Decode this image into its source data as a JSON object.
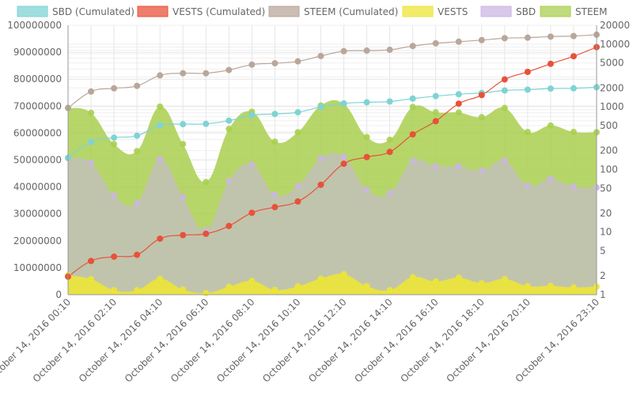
{
  "chart_data": {
    "type": "line",
    "x": [
      "October 14, 2016 00:10",
      "October 14, 2016 01:10",
      "October 14, 2016 02:10",
      "October 14, 2016 03:10",
      "October 14, 2016 04:10",
      "October 14, 2016 05:10",
      "October 14, 2016 06:10",
      "October 14, 2016 07:10",
      "October 14, 2016 08:10",
      "October 14, 2016 09:10",
      "October 14, 2016 10:10",
      "October 14, 2016 11:10",
      "October 14, 2016 12:10",
      "October 14, 2016 13:10",
      "October 14, 2016 14:10",
      "October 14, 2016 15:10",
      "October 14, 2016 16:10",
      "October 14, 2016 17:10",
      "October 14, 2016 18:10",
      "October 14, 2016 19:10",
      "October 14, 2016 20:10",
      "October 14, 2016 21:10",
      "October 14, 2016 22:10",
      "October 14, 2016 23:10"
    ],
    "x_tick_labels": [
      "October 14, 2016 00:10",
      "October 14, 2016 02:10",
      "October 14, 2016 04:10",
      "October 14, 2016 06:10",
      "October 14, 2016 08:10",
      "October 14, 2016 10:10",
      "October 14, 2016 12:10",
      "October 14, 2016 14:10",
      "October 14, 2016 16:10",
      "October 14, 2016 18:10",
      "October 14, 2016 20:10",
      "October 14, 2016 23:10"
    ],
    "y_left": {
      "min": 0,
      "max": 100000000,
      "scale": "linear",
      "ticks": [
        "0",
        "10000000",
        "20000000",
        "30000000",
        "40000000",
        "50000000",
        "60000000",
        "70000000",
        "80000000",
        "90000000",
        "100000000"
      ]
    },
    "y_right": {
      "min": 1,
      "max": 20000,
      "scale": "log",
      "ticks": [
        "1",
        "2",
        "5",
        "10",
        "20",
        "50",
        "100",
        "200",
        "500",
        "1000",
        "2000",
        "5000",
        "10000",
        "20000"
      ]
    },
    "grid": true,
    "legend_position": "top",
    "series": [
      {
        "name": "SBD (Cumulated)",
        "kind": "line",
        "axis": "left",
        "color": "#7fd3d4",
        "values": [
          50800000,
          56700000,
          58300000,
          59000000,
          62900000,
          63300000,
          63400000,
          64600000,
          66600000,
          67100000,
          67700000,
          69700000,
          71000000,
          71400000,
          71700000,
          72800000,
          73700000,
          74400000,
          74900000,
          75800000,
          76100000,
          76500000,
          76600000,
          77000000
        ]
      },
      {
        "name": "VESTS (Cumulated)",
        "kind": "line",
        "axis": "left",
        "color": "#e8513a",
        "values": [
          6700000,
          12500000,
          14100000,
          14800000,
          20800000,
          22100000,
          22600000,
          25500000,
          30400000,
          32500000,
          34600000,
          40800000,
          48600000,
          51100000,
          53000000,
          59500000,
          64400000,
          70900000,
          74100000,
          79900000,
          82700000,
          85700000,
          88500000,
          91900000
        ]
      },
      {
        "name": "STEEM (Cumulated)",
        "kind": "line",
        "axis": "left",
        "color": "#b9a79b",
        "values": [
          69300000,
          75400000,
          76600000,
          77500000,
          81400000,
          82200000,
          82200000,
          83400000,
          85400000,
          85900000,
          86600000,
          88600000,
          90400000,
          90600000,
          90900000,
          92300000,
          93300000,
          93900000,
          94500000,
          95200000,
          95400000,
          95800000,
          96000000,
          96500000
        ]
      },
      {
        "name": "VESTS",
        "kind": "area",
        "axis": "left",
        "color": "#ece637",
        "values": [
          7200000,
          5800000,
          1700000,
          1700000,
          5900000,
          1900000,
          600000,
          2900000,
          5100000,
          1800000,
          3100000,
          6000000,
          7600000,
          3200000,
          1700000,
          6500000,
          4900000,
          6300000,
          4300000,
          5800000,
          3200000,
          3300000,
          2700000,
          3000000
        ]
      },
      {
        "name": "SBD",
        "kind": "area",
        "axis": "left",
        "color": "#cbb6e3",
        "values": [
          50700000,
          49000000,
          36800000,
          34000000,
          50400000,
          36200000,
          23900000,
          42200000,
          48300000,
          37100000,
          40400000,
          50700000,
          51200000,
          38900000,
          37800000,
          49700000,
          47700000,
          47700000,
          46000000,
          49800000,
          40500000,
          43000000,
          40100000,
          39800000
        ]
      },
      {
        "name": "STEEM",
        "kind": "area",
        "axis": "left",
        "color": "#a9cf4f",
        "values": [
          69300000,
          67500000,
          55900000,
          53300000,
          69800000,
          55900000,
          41800000,
          61500000,
          67900000,
          56800000,
          60300000,
          70200000,
          70800000,
          58500000,
          57500000,
          69700000,
          67700000,
          67600000,
          65900000,
          69300000,
          60400000,
          62800000,
          60400000,
          60300000
        ]
      }
    ]
  }
}
